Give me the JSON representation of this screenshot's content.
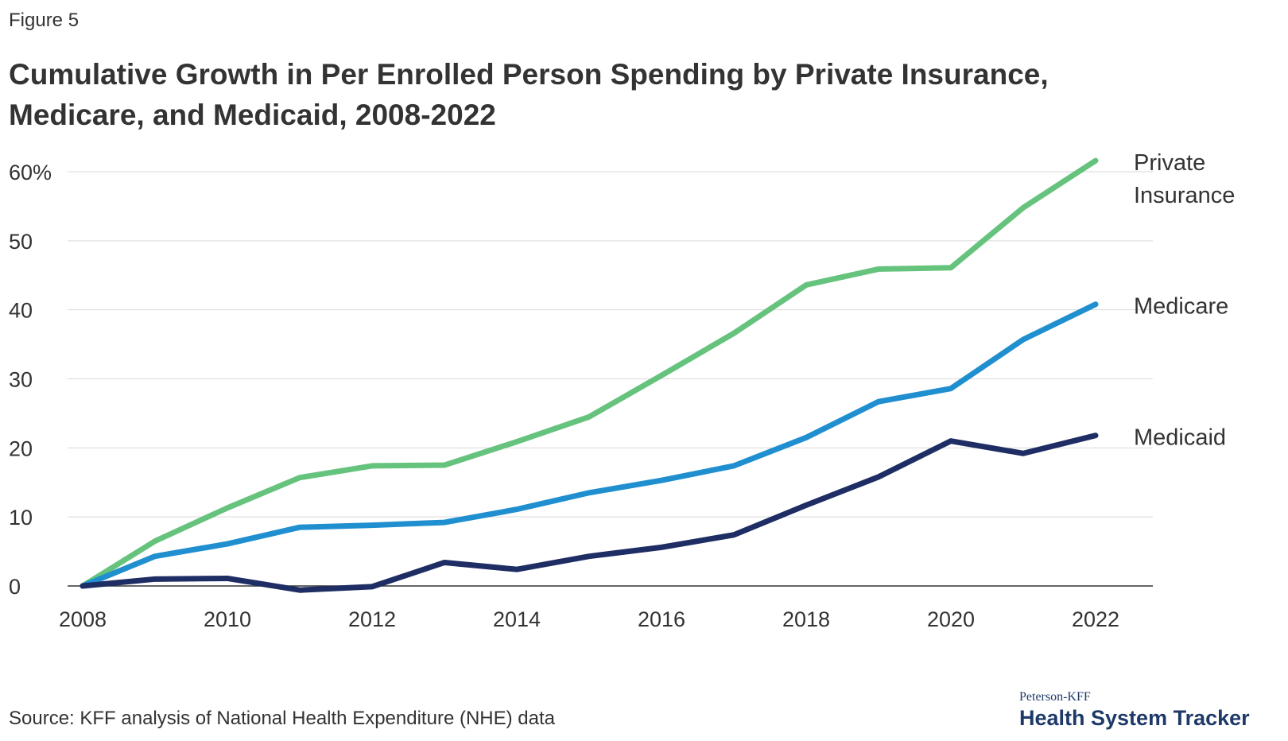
{
  "figure_label": "Figure 5",
  "source": "Source: KFF analysis of National Health Expenditure (NHE) data",
  "brand": {
    "top": "Peterson-KFF",
    "main": "Health System Tracker",
    "color": "#1f3a68"
  },
  "chart_data": {
    "type": "line",
    "title": "Cumulative Growth in Per Enrolled Person Spending by Private Insurance, Medicare, and Medicaid, 2008-2022",
    "xlabel": "",
    "ylabel": "",
    "x": [
      2008,
      2009,
      2010,
      2011,
      2012,
      2013,
      2014,
      2015,
      2016,
      2017,
      2018,
      2019,
      2020,
      2021,
      2022
    ],
    "xlim": [
      2008,
      2022
    ],
    "ylim": [
      0,
      60
    ],
    "x_ticks": [
      2008,
      2010,
      2012,
      2014,
      2016,
      2018,
      2020,
      2022
    ],
    "y_ticks": [
      {
        "value": 0,
        "label": "0"
      },
      {
        "value": 10,
        "label": "10"
      },
      {
        "value": 20,
        "label": "20"
      },
      {
        "value": 30,
        "label": "30"
      },
      {
        "value": 40,
        "label": "40"
      },
      {
        "value": 50,
        "label": "50"
      },
      {
        "value": 60,
        "label": "60%"
      }
    ],
    "grid": true,
    "legend": "direct labels at line ends",
    "series": [
      {
        "name": "Private Insurance",
        "label_lines": [
          "Private",
          "Insurance"
        ],
        "color": "#66c37d",
        "values": [
          0,
          6.5,
          11.3,
          15.7,
          17.4,
          17.5,
          20.9,
          24.5,
          30.5,
          36.6,
          43.6,
          45.9,
          46.1,
          54.8,
          61.6
        ]
      },
      {
        "name": "Medicare",
        "label_lines": [
          "Medicare"
        ],
        "color": "#1f8fd0",
        "values": [
          0,
          4.3,
          6.1,
          8.5,
          8.8,
          9.2,
          11.1,
          13.5,
          15.3,
          17.4,
          21.5,
          26.7,
          28.6,
          35.7,
          40.8
        ]
      },
      {
        "name": "Medicaid",
        "label_lines": [
          "Medicaid"
        ],
        "color": "#1e2d63",
        "values": [
          0,
          1.0,
          1.1,
          -0.6,
          -0.1,
          3.4,
          2.4,
          4.3,
          5.6,
          7.4,
          11.7,
          15.8,
          21.0,
          19.2,
          21.8
        ]
      }
    ]
  }
}
